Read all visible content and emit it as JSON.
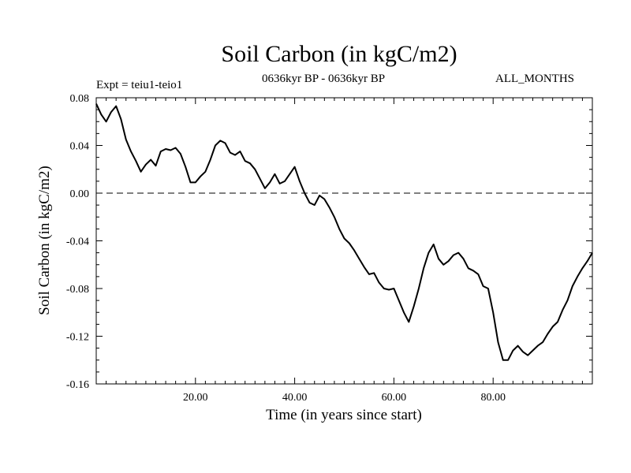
{
  "chart_data": {
    "type": "line",
    "title": "Soil Carbon (in kgC/m2)",
    "subtitle_left": "Expt = teiu1-teio1",
    "subtitle_center": "0636kyr BP - 0636kyr BP",
    "subtitle_right": "ALL_MONTHS",
    "xlabel": "Time (in years since start)",
    "ylabel": "Soil Carbon (in kgC/m2)",
    "xlim": [
      0,
      100
    ],
    "ylim": [
      -0.16,
      0.08
    ],
    "x_ticks": [
      20,
      40,
      60,
      80
    ],
    "x_tick_labels": [
      "20.00",
      "40.00",
      "60.00",
      "80.00"
    ],
    "y_ticks": [
      0.08,
      0.04,
      0.0,
      -0.04,
      -0.08,
      -0.12,
      -0.16
    ],
    "y_tick_labels": [
      "0.08",
      "0.04",
      "0.00",
      "-0.04",
      "-0.08",
      "-0.12",
      "-0.16"
    ],
    "reference_line": {
      "y": 0.0,
      "style": "dashed"
    },
    "series": [
      {
        "name": "Soil Carbon",
        "x": [
          0,
          1,
          2,
          3,
          4,
          5,
          6,
          7,
          8,
          9,
          10,
          11,
          12,
          13,
          14,
          15,
          16,
          17,
          18,
          19,
          20,
          21,
          22,
          23,
          24,
          25,
          26,
          27,
          28,
          29,
          30,
          31,
          32,
          33,
          34,
          35,
          36,
          37,
          38,
          39,
          40,
          41,
          42,
          43,
          44,
          45,
          46,
          47,
          48,
          49,
          50,
          51,
          52,
          53,
          54,
          55,
          56,
          57,
          58,
          59,
          60,
          61,
          62,
          63,
          64,
          65,
          66,
          67,
          68,
          69,
          70,
          71,
          72,
          73,
          74,
          75,
          76,
          77,
          78,
          79,
          80,
          81,
          82,
          83,
          84,
          85,
          86,
          87,
          88,
          89,
          90,
          91,
          92,
          93,
          94,
          95,
          96,
          97,
          98,
          99,
          100
        ],
        "values": [
          0.075,
          0.066,
          0.06,
          0.068,
          0.073,
          0.062,
          0.045,
          0.035,
          0.027,
          0.018,
          0.024,
          0.028,
          0.023,
          0.035,
          0.037,
          0.036,
          0.038,
          0.033,
          0.022,
          0.009,
          0.009,
          0.014,
          0.018,
          0.028,
          0.04,
          0.044,
          0.042,
          0.034,
          0.032,
          0.035,
          0.027,
          0.025,
          0.02,
          0.012,
          0.004,
          0.009,
          0.016,
          0.008,
          0.01,
          0.016,
          0.022,
          0.01,
          0.0,
          -0.008,
          -0.01,
          -0.002,
          -0.005,
          -0.012,
          -0.02,
          -0.03,
          -0.038,
          -0.042,
          -0.048,
          -0.055,
          -0.062,
          -0.068,
          -0.067,
          -0.075,
          -0.08,
          -0.081,
          -0.08,
          -0.09,
          -0.1,
          -0.108,
          -0.095,
          -0.08,
          -0.063,
          -0.05,
          -0.043,
          -0.055,
          -0.06,
          -0.057,
          -0.052,
          -0.05,
          -0.055,
          -0.063,
          -0.065,
          -0.068,
          -0.078,
          -0.08,
          -0.1,
          -0.125,
          -0.14,
          -0.14,
          -0.132,
          -0.128,
          -0.133,
          -0.136,
          -0.132,
          -0.128,
          -0.125,
          -0.118,
          -0.112,
          -0.108,
          -0.098,
          -0.09,
          -0.078,
          -0.07,
          -0.063,
          -0.057,
          -0.05
        ]
      }
    ]
  }
}
